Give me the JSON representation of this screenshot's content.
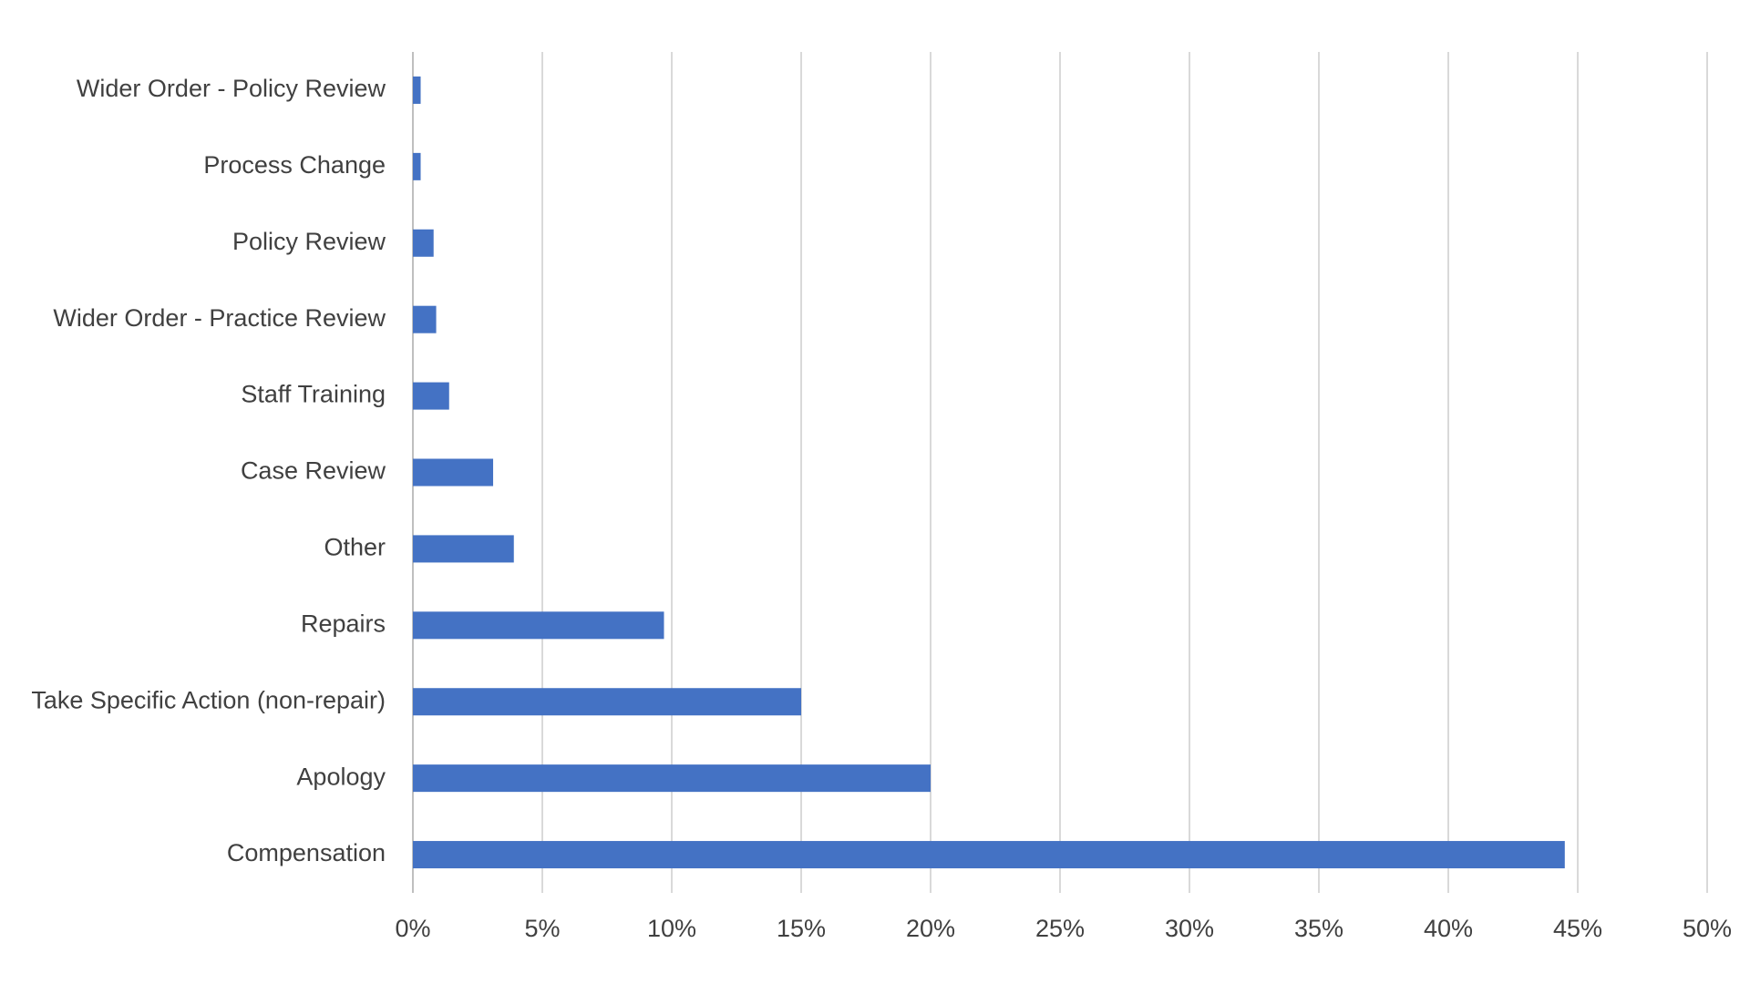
{
  "chart_data": {
    "type": "hbar",
    "categories": [
      "Wider Order - Policy Review",
      "Process Change",
      "Policy Review",
      "Wider Order - Practice Review",
      "Staff Training",
      "Case Review",
      "Other",
      "Repairs",
      "Take Specific Action (non-repair)",
      "Apology",
      "Compensation"
    ],
    "values": [
      0.3,
      0.3,
      0.8,
      0.9,
      1.4,
      3.1,
      3.9,
      9.7,
      15.0,
      20.0,
      44.5
    ],
    "color": "#4472c4",
    "xlim": [
      0,
      50
    ],
    "xticks": [
      {
        "value": 0,
        "label": "0%"
      },
      {
        "value": 5,
        "label": "5%"
      },
      {
        "value": 10,
        "label": "10%"
      },
      {
        "value": 15,
        "label": "15%"
      },
      {
        "value": 20,
        "label": "20%"
      },
      {
        "value": 25,
        "label": "25%"
      },
      {
        "value": 30,
        "label": "30%"
      },
      {
        "value": 35,
        "label": "35%"
      },
      {
        "value": 40,
        "label": "40%"
      },
      {
        "value": 45,
        "label": "45%"
      },
      {
        "value": 50,
        "label": "50%"
      }
    ],
    "grid": true
  }
}
